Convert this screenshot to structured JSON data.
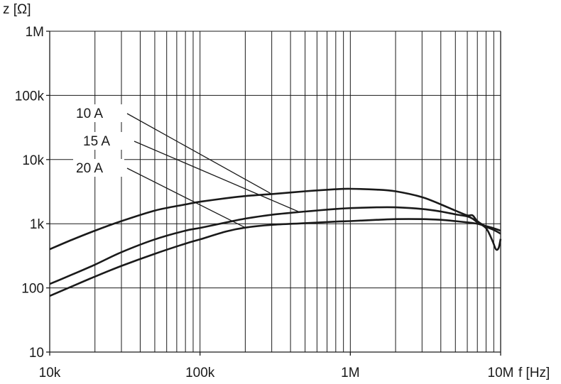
{
  "chart_data": {
    "type": "line",
    "title": "",
    "xlabel": "f [Hz]",
    "ylabel": "z [Ω]",
    "xscale": "log",
    "yscale": "log",
    "xlim": [
      10000,
      10000000
    ],
    "ylim": [
      10,
      1000000
    ],
    "grid": true,
    "x_ticks": [
      {
        "value": 10000,
        "label": "10k"
      },
      {
        "value": 100000,
        "label": "100k"
      },
      {
        "value": 1000000,
        "label": "1M"
      },
      {
        "value": 10000000,
        "label": "10M"
      }
    ],
    "y_ticks": [
      {
        "value": 10,
        "label": "10"
      },
      {
        "value": 100,
        "label": "100"
      },
      {
        "value": 1000,
        "label": "1k"
      },
      {
        "value": 10000,
        "label": "10k"
      },
      {
        "value": 100000,
        "label": "100k"
      },
      {
        "value": 1000000,
        "label": "1M"
      }
    ],
    "series": [
      {
        "name": "10 A",
        "x": [
          10000,
          14000,
          20000,
          30000,
          50000,
          80000,
          100000,
          150000,
          200000,
          300000,
          500000,
          800000,
          1000000,
          1500000,
          2000000,
          3000000,
          4000000,
          5000000,
          6000000,
          6500000,
          7000000,
          8000000,
          9000000,
          10000000
        ],
        "y": [
          400,
          560,
          780,
          1100,
          1600,
          2000,
          2200,
          2500,
          2700,
          2900,
          3200,
          3450,
          3500,
          3400,
          3200,
          2600,
          2000,
          1600,
          1350,
          1350,
          1100,
          900,
          800,
          700
        ]
      },
      {
        "name": "15 A",
        "x": [
          10000,
          14000,
          20000,
          30000,
          50000,
          80000,
          100000,
          150000,
          200000,
          300000,
          500000,
          800000,
          1000000,
          1500000,
          2000000,
          3000000,
          4000000,
          5000000,
          6000000,
          6500000,
          7000000,
          8000000,
          8800000,
          9300000,
          9700000,
          10000000
        ],
        "y": [
          115,
          160,
          230,
          360,
          570,
          780,
          860,
          1050,
          1200,
          1380,
          1550,
          1700,
          1750,
          1800,
          1800,
          1700,
          1550,
          1400,
          1300,
          1200,
          1050,
          850,
          550,
          400,
          420,
          580
        ]
      },
      {
        "name": "20 A",
        "x": [
          10000,
          14000,
          20000,
          30000,
          50000,
          80000,
          100000,
          150000,
          200000,
          300000,
          500000,
          800000,
          1000000,
          1500000,
          2000000,
          3000000,
          4000000,
          5000000,
          6000000,
          7000000,
          8000000,
          9000000,
          10000000
        ],
        "y": [
          75,
          105,
          150,
          220,
          340,
          490,
          570,
          760,
          870,
          960,
          1020,
          1080,
          1100,
          1150,
          1180,
          1180,
          1150,
          1100,
          1050,
          1000,
          920,
          850,
          780
        ]
      }
    ],
    "legend": [
      {
        "label": "10 A",
        "anchor": {
          "x": 300000,
          "y": 2900
        }
      },
      {
        "label": "15 A",
        "anchor": {
          "x": 450000,
          "y": 1550
        }
      },
      {
        "label": "20 A",
        "anchor": {
          "x": 200000,
          "y": 870
        }
      }
    ],
    "colors": {
      "line": "#1a1a1a",
      "grid": "#1a1a1a",
      "background": "#ffffff"
    }
  }
}
